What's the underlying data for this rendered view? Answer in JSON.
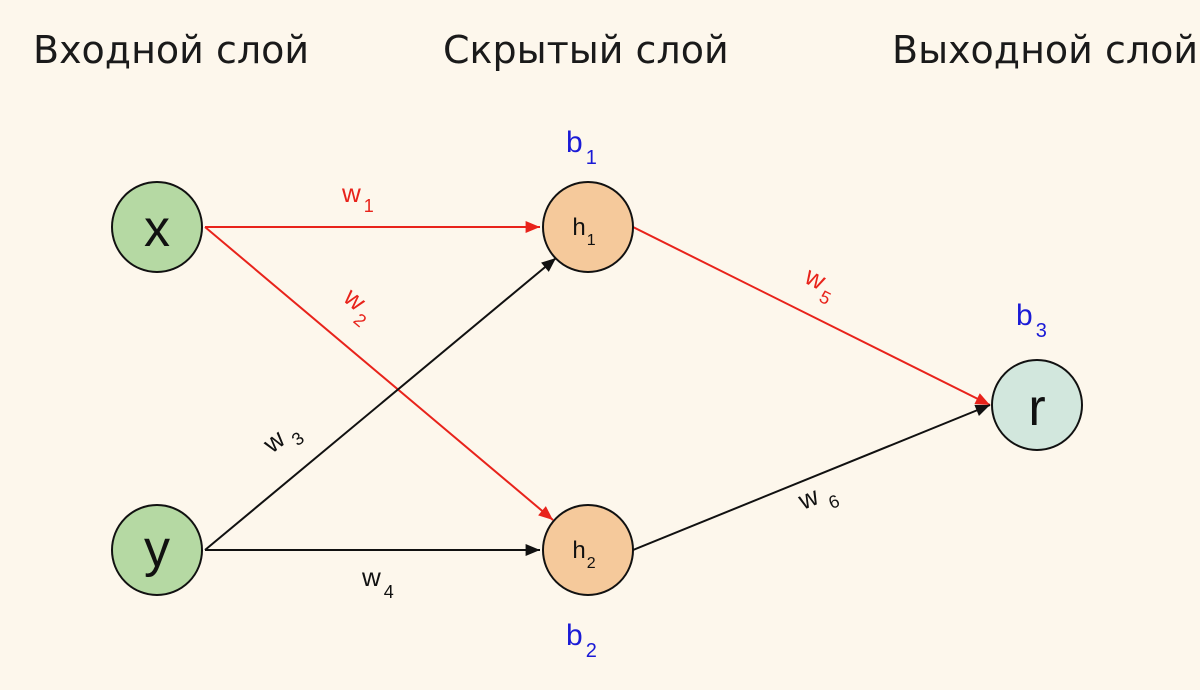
{
  "layers": {
    "input_title": "Входной слой",
    "hidden_title": "Скрытый слой",
    "output_title": "Выходной слой"
  },
  "nodes": {
    "x": {
      "label": "x"
    },
    "y": {
      "label": "y"
    },
    "h1": {
      "label": "h",
      "sub": "1"
    },
    "h2": {
      "label": "h",
      "sub": "2"
    },
    "r": {
      "label": "r"
    }
  },
  "biases": {
    "b1": {
      "label": "b",
      "sub": "1"
    },
    "b2": {
      "label": "b",
      "sub": "2"
    },
    "b3": {
      "label": "b",
      "sub": "3"
    }
  },
  "weights": {
    "w1": {
      "label": "w",
      "sub": "1"
    },
    "w2": {
      "label": "w",
      "sub": "2"
    },
    "w3": {
      "label": "w",
      "sub": "3"
    },
    "w4": {
      "label": "w",
      "sub": "4"
    },
    "w5": {
      "label": "w",
      "sub": "5"
    },
    "w6": {
      "label": "w",
      "sub": "6"
    }
  },
  "colors": {
    "background": "#fdf7ec",
    "input_node_fill": "#b5d9a3",
    "hidden_node_fill": "#f5c99b",
    "output_node_fill": "#d2e7dd",
    "highlight_edge": "#e8231b",
    "normal_edge": "#111111",
    "bias_text": "#1a1ad6"
  }
}
